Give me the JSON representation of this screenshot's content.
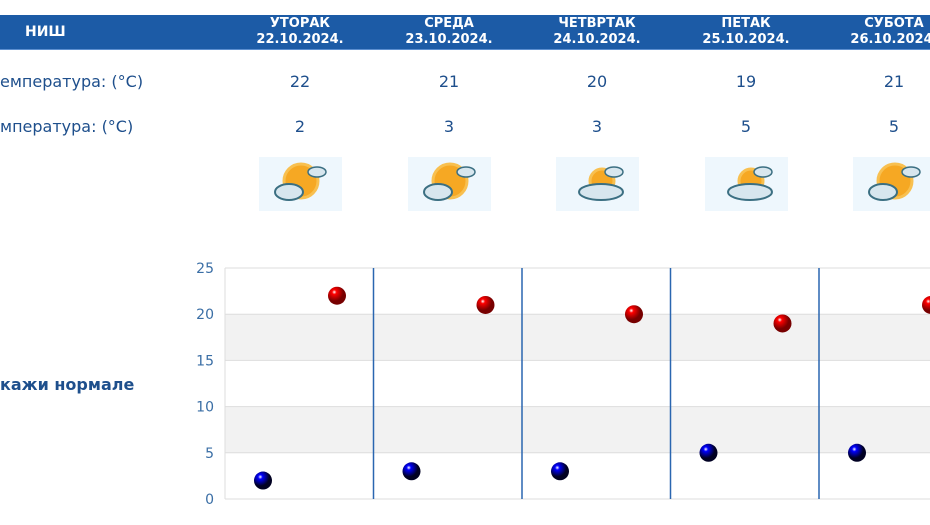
{
  "header": {
    "city": "НИШ",
    "days": [
      {
        "name": "УТОРАК",
        "date": "22.10.2024."
      },
      {
        "name": "СРЕДА",
        "date": "23.10.2024."
      },
      {
        "name": "ЧЕТВРТАК",
        "date": "24.10.2024."
      },
      {
        "name": "ПЕТАК",
        "date": "25.10.2024."
      },
      {
        "name": "СУБОТА",
        "date": "26.10.2024."
      }
    ]
  },
  "rows": {
    "max_label": "емпература: (°C)",
    "min_label": "мпература: (°C)"
  },
  "icons": [
    "partly-cloudy-sun-icon",
    "partly-cloudy-sun-icon",
    "cloudy-sun-icon",
    "cloudy-sun-icon",
    "partly-cloudy-sun-icon"
  ],
  "show_normals": "кажи нормале",
  "chart_data": {
    "type": "scatter",
    "categories": [
      "22.10.2024.",
      "23.10.2024.",
      "24.10.2024.",
      "25.10.2024.",
      "26.10.2024."
    ],
    "yticks": [
      "0",
      "5",
      "10",
      "15",
      "20",
      "25"
    ],
    "ylim": [
      0,
      25
    ],
    "grid": true,
    "series": [
      {
        "values": [
          22,
          21,
          20,
          19,
          21
        ],
        "color": "#d40000"
      },
      {
        "values": [
          2,
          3,
          3,
          5,
          5
        ],
        "color": "#0000c8"
      }
    ]
  }
}
